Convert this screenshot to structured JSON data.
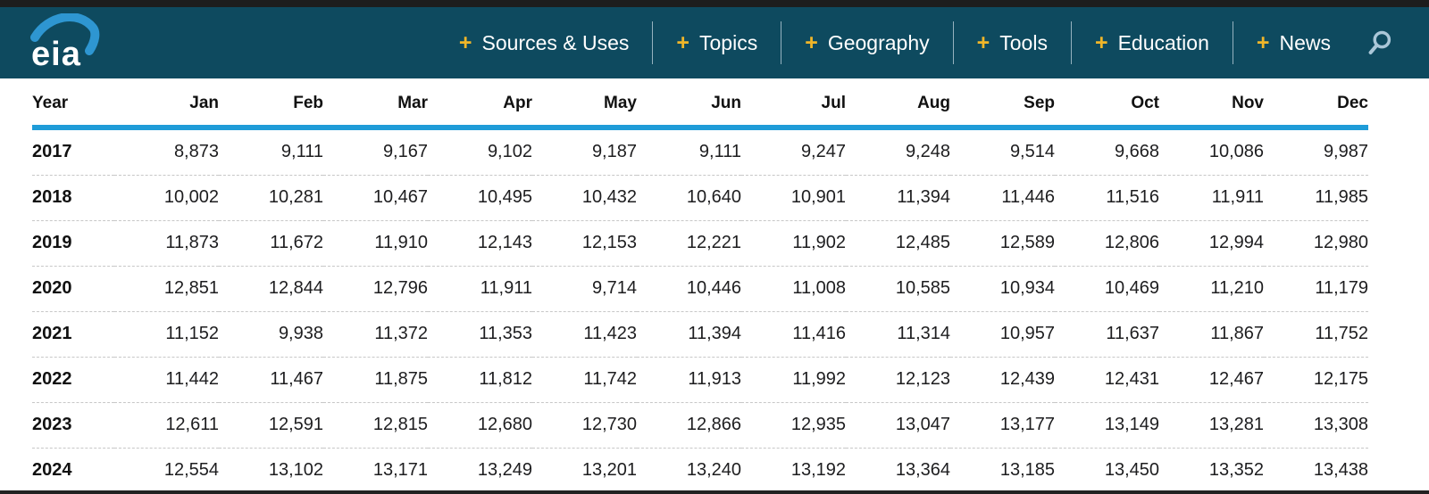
{
  "header": {
    "logo_text": "eia",
    "nav_items": [
      {
        "slug": "sources-uses",
        "label": "Sources & Uses"
      },
      {
        "slug": "topics",
        "label": "Topics"
      },
      {
        "slug": "geography",
        "label": "Geography"
      },
      {
        "slug": "tools",
        "label": "Tools"
      },
      {
        "slug": "education",
        "label": "Education"
      },
      {
        "slug": "news",
        "label": "News"
      }
    ],
    "plus_glyph": "+",
    "colors": {
      "masthead_bg": "#0e4a5f",
      "plus_accent": "#f0b629",
      "nav_text": "#ffffff",
      "logo_swoosh": "#2e96d1",
      "search_icon": "#aac7d8",
      "header_rule": "#1f9cd8"
    }
  },
  "table": {
    "columns": [
      "Year",
      "Jan",
      "Feb",
      "Mar",
      "Apr",
      "May",
      "Jun",
      "Jul",
      "Aug",
      "Sep",
      "Oct",
      "Nov",
      "Dec"
    ],
    "rows": [
      {
        "year": "2017",
        "values": [
          "8,873",
          "9,111",
          "9,167",
          "9,102",
          "9,187",
          "9,111",
          "9,247",
          "9,248",
          "9,514",
          "9,668",
          "10,086",
          "9,987"
        ]
      },
      {
        "year": "2018",
        "values": [
          "10,002",
          "10,281",
          "10,467",
          "10,495",
          "10,432",
          "10,640",
          "10,901",
          "11,394",
          "11,446",
          "11,516",
          "11,911",
          "11,985"
        ]
      },
      {
        "year": "2019",
        "values": [
          "11,873",
          "11,672",
          "11,910",
          "12,143",
          "12,153",
          "12,221",
          "11,902",
          "12,485",
          "12,589",
          "12,806",
          "12,994",
          "12,980"
        ]
      },
      {
        "year": "2020",
        "values": [
          "12,851",
          "12,844",
          "12,796",
          "11,911",
          "9,714",
          "10,446",
          "11,008",
          "10,585",
          "10,934",
          "10,469",
          "11,210",
          "11,179"
        ]
      },
      {
        "year": "2021",
        "values": [
          "11,152",
          "9,938",
          "11,372",
          "11,353",
          "11,423",
          "11,394",
          "11,416",
          "11,314",
          "10,957",
          "11,637",
          "11,867",
          "11,752"
        ]
      },
      {
        "year": "2022",
        "values": [
          "11,442",
          "11,467",
          "11,875",
          "11,812",
          "11,742",
          "11,913",
          "11,992",
          "12,123",
          "12,439",
          "12,431",
          "12,467",
          "12,175"
        ]
      },
      {
        "year": "2023",
        "values": [
          "12,611",
          "12,591",
          "12,815",
          "12,680",
          "12,730",
          "12,866",
          "12,935",
          "13,047",
          "13,177",
          "13,149",
          "13,281",
          "13,308"
        ]
      },
      {
        "year": "2024",
        "values": [
          "12,554",
          "13,102",
          "13,171",
          "13,249",
          "13,201",
          "13,240",
          "13,192",
          "13,364",
          "13,185",
          "13,450",
          "13,352",
          "13,438"
        ]
      }
    ]
  }
}
